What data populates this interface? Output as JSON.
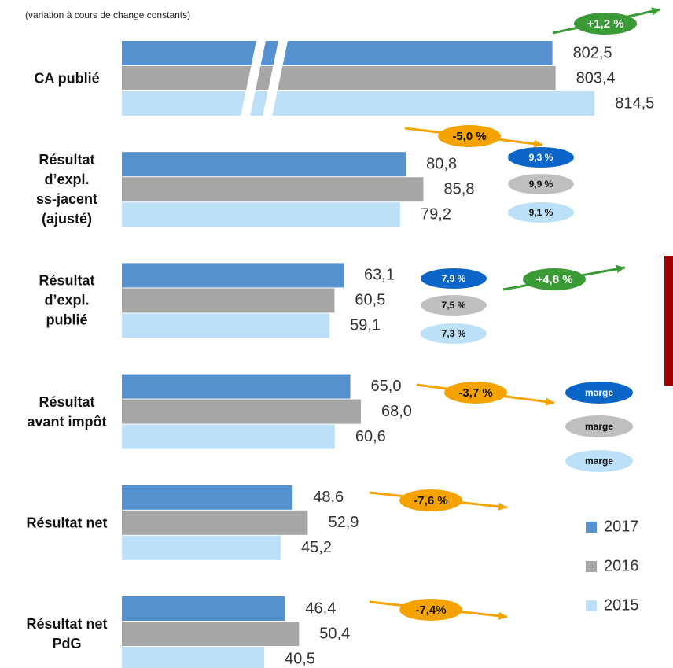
{
  "chart_data": {
    "type": "bar",
    "orientation": "horizontal",
    "subtitle": "(variation à cours de change constants)",
    "categories": [
      "CA publié",
      "Résultat\nd’expl.\nss-jacent\n(ajusté)",
      "Résultat\nd’expl.\npublié",
      "Résultat\navant impôt",
      "Résultat net",
      "Résultat net\nPdG"
    ],
    "series": [
      {
        "name": "2017",
        "color": "#5591cf",
        "values": [
          802.5,
          80.8,
          63.1,
          65.0,
          48.6,
          46.4
        ],
        "value_labels": [
          "802,5",
          "80,8",
          "63,1",
          "65,0",
          "48,6",
          "46,4"
        ]
      },
      {
        "name": "2016",
        "color": "#a6a6a6",
        "values": [
          803.4,
          85.8,
          60.5,
          68.0,
          52.9,
          50.4
        ],
        "value_labels": [
          "803,4",
          "85,8",
          "60,5",
          "68,0",
          "52,9",
          "50,4"
        ]
      },
      {
        "name": "2015",
        "color": "#bde0f9",
        "values": [
          814.5,
          79.2,
          59.1,
          60.6,
          45.2,
          40.5
        ],
        "value_labels": [
          "814,5",
          "79,2",
          "59,1",
          "60,6",
          "45,2",
          "40,5"
        ]
      }
    ],
    "xlim": [
      0,
      100
    ],
    "xbreak": [
      40,
      720
    ],
    "legend": "bottom-right",
    "annotations": [
      {
        "text": "+1,2 %",
        "color": "#3a9a35"
      },
      {
        "text": "-5,0 %",
        "color": "#f5a300"
      },
      {
        "text": "+4,8 %",
        "color": "#3a9a35"
      },
      {
        "text": "-3,7 %",
        "color": "#f5a300"
      },
      {
        "text": "-7,6 %",
        "color": "#f5a300"
      },
      {
        "text": "-7,4%",
        "color": "#f5a300"
      }
    ],
    "margins": [
      {
        "labels": [
          "9,3 %",
          "9,9 %",
          "9,1 %"
        ]
      },
      {
        "labels": [
          "7,9 %",
          "7,5 %",
          "7,3 %"
        ]
      },
      {
        "labels": [
          "marge",
          "marge",
          "marge"
        ]
      }
    ],
    "margin_colors": [
      "#0b66c8",
      "#bfbfbf",
      "#bde0f9"
    ]
  }
}
